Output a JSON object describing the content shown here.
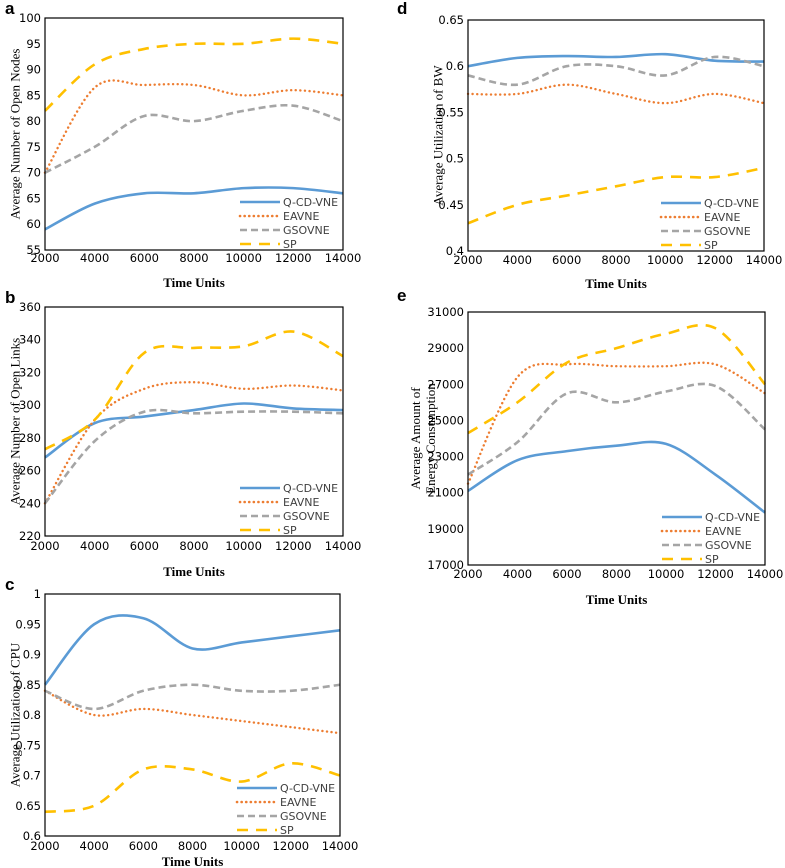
{
  "series_styles": {
    "Q-CD-VNE": {
      "color": "#5b9bd5",
      "dash": "solid"
    },
    "EAVNE": {
      "color": "#ed7d31",
      "dash": "dotted"
    },
    "GSOVNE": {
      "color": "#a5a5a5",
      "dash": "dashed"
    },
    "SP": {
      "color": "#ffc000",
      "dash": "long-dashed"
    }
  },
  "chart_data": [
    {
      "panel": "a",
      "type": "line",
      "xlabel": "Time Units",
      "ylabel": "Average Number of Open Nodes",
      "x": [
        2000,
        4000,
        6000,
        8000,
        10000,
        12000,
        14000
      ],
      "xticks": [
        "2000",
        "4000",
        "6000",
        "8000",
        "10000",
        "12000",
        "14000"
      ],
      "ylim": [
        55,
        100
      ],
      "yticks": [
        "55",
        "60",
        "65",
        "70",
        "75",
        "80",
        "85",
        "90",
        "95",
        "100"
      ],
      "legend": "bottom-right",
      "grid": false,
      "series": [
        {
          "name": "Q-CD-VNE",
          "values": [
            59,
            64,
            66,
            66,
            67,
            67,
            66
          ]
        },
        {
          "name": "EAVNE",
          "values": [
            70,
            86.5,
            87,
            87,
            85,
            86,
            85
          ]
        },
        {
          "name": "GSOVNE",
          "values": [
            70,
            75,
            81,
            80,
            82,
            83,
            80
          ]
        },
        {
          "name": "SP",
          "values": [
            82,
            91,
            94,
            95,
            95,
            96,
            95
          ]
        }
      ]
    },
    {
      "panel": "b",
      "type": "line",
      "xlabel": "Time Units",
      "ylabel": "Average Number of Open Links",
      "x": [
        2000,
        4000,
        6000,
        8000,
        10000,
        12000,
        14000
      ],
      "xticks": [
        "2000",
        "4000",
        "6000",
        "8000",
        "10000",
        "12000",
        "14000"
      ],
      "ylim": [
        220,
        360
      ],
      "yticks": [
        "220",
        "240",
        "260",
        "280",
        "300",
        "320",
        "340",
        "360"
      ],
      "legend": "bottom-right",
      "grid": false,
      "series": [
        {
          "name": "Q-CD-VNE",
          "values": [
            268,
            289,
            293,
            297,
            301,
            298,
            297
          ]
        },
        {
          "name": "EAVNE",
          "values": [
            240,
            291,
            310,
            314,
            310,
            312,
            309
          ]
        },
        {
          "name": "GSOVNE",
          "values": [
            240,
            278,
            296,
            295,
            296,
            296,
            295
          ]
        },
        {
          "name": "SP",
          "values": [
            273,
            291,
            332,
            335,
            336,
            345,
            330
          ]
        }
      ]
    },
    {
      "panel": "c",
      "type": "line",
      "xlabel": "Time Units",
      "ylabel": "Average Utilization of CPU",
      "x": [
        2000,
        4000,
        6000,
        8000,
        10000,
        12000,
        14000
      ],
      "xticks": [
        "2000",
        "4000",
        "6000",
        "8000",
        "10000",
        "12000",
        "14000"
      ],
      "ylim": [
        0.6,
        1
      ],
      "yticks": [
        "0.6",
        "0.65",
        "0.7",
        "0.75",
        "0.8",
        "0.85",
        "0.9",
        "0.95",
        "1"
      ],
      "legend": "bottom-right",
      "grid": false,
      "series": [
        {
          "name": "Q-CD-VNE",
          "values": [
            0.85,
            0.95,
            0.96,
            0.91,
            0.92,
            0.93,
            0.94
          ]
        },
        {
          "name": "EAVNE",
          "values": [
            0.84,
            0.8,
            0.81,
            0.8,
            0.79,
            0.78,
            0.77
          ]
        },
        {
          "name": "GSOVNE",
          "values": [
            0.84,
            0.81,
            0.84,
            0.85,
            0.84,
            0.84,
            0.85
          ]
        },
        {
          "name": "SP",
          "values": [
            0.64,
            0.65,
            0.71,
            0.71,
            0.69,
            0.72,
            0.7
          ]
        }
      ]
    },
    {
      "panel": "d",
      "type": "line",
      "xlabel": "Time Units",
      "ylabel": "Average Utilization of BW",
      "x": [
        2000,
        4000,
        6000,
        8000,
        10000,
        12000,
        14000
      ],
      "xticks": [
        "2000",
        "4000",
        "6000",
        "8000",
        "10000",
        "12000",
        "14000"
      ],
      "ylim": [
        0.4,
        0.65
      ],
      "yticks": [
        "0.4",
        "0.45",
        "0.5",
        "0.55",
        "0.6",
        "0.65"
      ],
      "legend": "bottom-right",
      "grid": false,
      "series": [
        {
          "name": "Q-CD-VNE",
          "values": [
            0.6,
            0.609,
            0.611,
            0.61,
            0.613,
            0.606,
            0.605
          ]
        },
        {
          "name": "EAVNE",
          "values": [
            0.57,
            0.57,
            0.58,
            0.57,
            0.56,
            0.57,
            0.56
          ]
        },
        {
          "name": "GSOVNE",
          "values": [
            0.59,
            0.58,
            0.6,
            0.6,
            0.59,
            0.61,
            0.6
          ]
        },
        {
          "name": "SP",
          "values": [
            0.43,
            0.45,
            0.46,
            0.47,
            0.48,
            0.48,
            0.49
          ]
        }
      ]
    },
    {
      "panel": "e",
      "type": "line",
      "xlabel": "Time Units",
      "ylabel": "Average Amount of Energy Consumption",
      "ylabel_lines": [
        "Average Amount of",
        "Energy Consumption"
      ],
      "x": [
        2000,
        4000,
        6000,
        8000,
        10000,
        12000,
        14000
      ],
      "xticks": [
        "2000",
        "4000",
        "6000",
        "8000",
        "10000",
        "12000",
        "14000"
      ],
      "ylim": [
        17000,
        31000
      ],
      "yticks": [
        "17000",
        "19000",
        "21000",
        "23000",
        "25000",
        "27000",
        "29000",
        "31000"
      ],
      "legend": "bottom-right",
      "grid": false,
      "series": [
        {
          "name": "Q-CD-VNE",
          "values": [
            21100,
            22800,
            23300,
            23600,
            23700,
            22000,
            19900
          ]
        },
        {
          "name": "EAVNE",
          "values": [
            21500,
            27400,
            28100,
            28000,
            28000,
            28100,
            26500
          ]
        },
        {
          "name": "GSOVNE",
          "values": [
            22000,
            23800,
            26500,
            26000,
            26600,
            26900,
            24500
          ]
        },
        {
          "name": "SP",
          "values": [
            24300,
            26000,
            28200,
            29000,
            29800,
            30100,
            27000
          ]
        }
      ]
    }
  ]
}
